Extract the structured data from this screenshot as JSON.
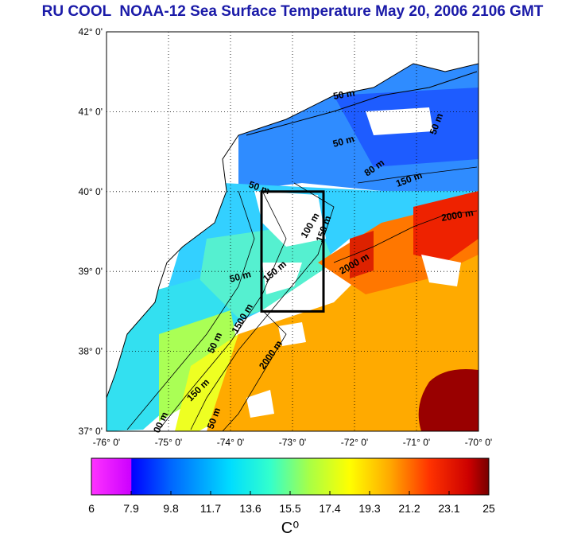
{
  "title": "RU COOL  NOAA-12 Sea Surface Temperature May 20, 2006 2106 GMT",
  "map": {
    "lat_ticks": [
      "42° 0'",
      "41° 0'",
      "40° 0'",
      "39° 0'",
      "38° 0'",
      "37° 0'"
    ],
    "lon_ticks": [
      "-76° 0'",
      "-75° 0'",
      "-74° 0'",
      "-73° 0'",
      "-72° 0'",
      "-71° 0'",
      "-70° 0'"
    ],
    "contour_labels": [
      "50 m",
      "50 m",
      "50 m",
      "80 m",
      "150 m",
      "50 m",
      "150 m",
      "50 m",
      "1500 m",
      "2000 m",
      "2000 m",
      "2000 m",
      "50 m",
      "150 m",
      "00 m",
      "150 m",
      "50 m",
      "100 m"
    ],
    "box": {
      "lon_min": -73.5,
      "lon_max": -72.5,
      "lat_min": 38.5,
      "lat_max": 40.0
    },
    "colors": {
      "land": "#ffffff",
      "cloud": "#ffffff",
      "grid": "#000000"
    }
  },
  "colorbar": {
    "min": 6,
    "max": 25,
    "tick_labels": [
      "6",
      "7.9",
      "9.8",
      "11.7",
      "13.6",
      "15.5",
      "17.4",
      "19.3",
      "21.2",
      "23.1",
      "25"
    ],
    "unit": "C⁰",
    "colors": [
      "#ff33ff",
      "#0000ff",
      "#0066ff",
      "#00ccff",
      "#33ffcc",
      "#99ff66",
      "#ffff00",
      "#ffaa00",
      "#ff5500",
      "#dd0000",
      "#880000"
    ]
  }
}
